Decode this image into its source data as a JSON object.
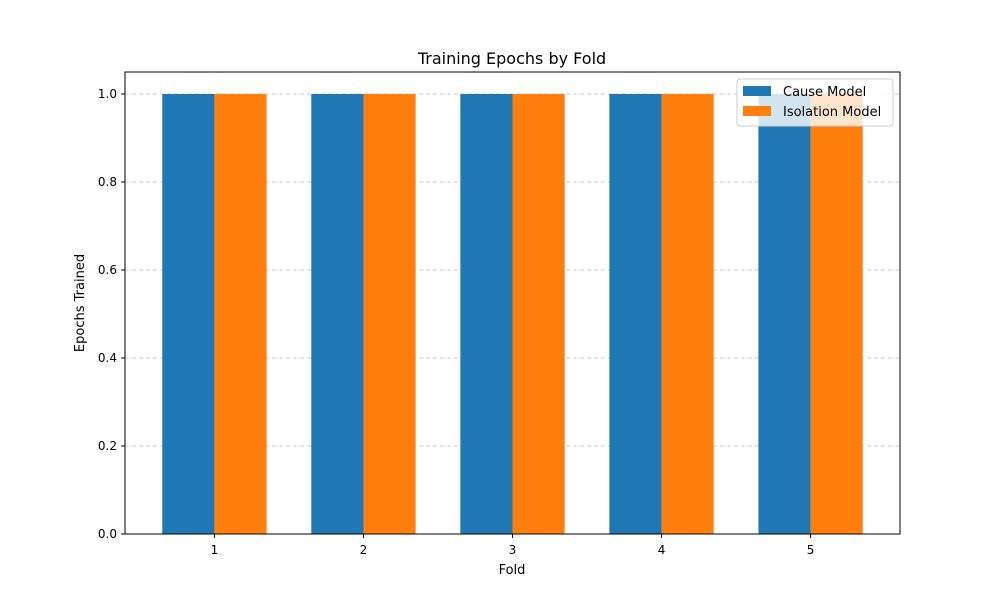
{
  "chart_data": {
    "type": "bar",
    "title": "Training Epochs by Fold",
    "xlabel": "Fold",
    "ylabel": "Epochs Trained",
    "categories": [
      "1",
      "2",
      "3",
      "4",
      "5"
    ],
    "series": [
      {
        "name": "Cause Model",
        "values": [
          1,
          1,
          1,
          1,
          1
        ],
        "color": "#1f77b4"
      },
      {
        "name": "Isolation Model",
        "values": [
          1,
          1,
          1,
          1,
          1
        ],
        "color": "#ff7f0e"
      }
    ],
    "ylim": [
      0,
      1.05
    ],
    "yticks": [
      "0.0",
      "0.2",
      "0.4",
      "0.6",
      "0.8",
      "1.0"
    ],
    "grid": "y-dashed",
    "legend_position": "top-right"
  }
}
